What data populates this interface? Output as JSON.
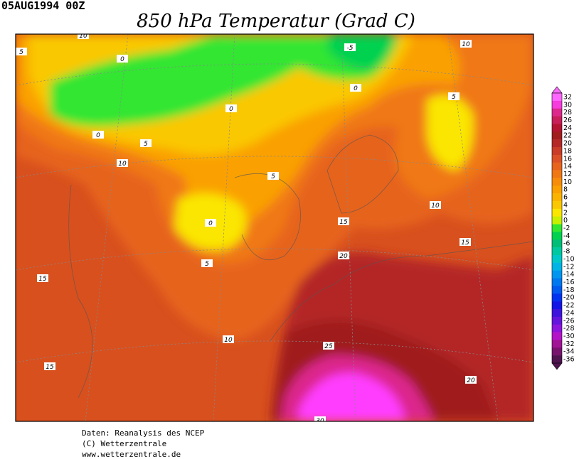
{
  "header": {
    "timestamp": "05AUG1994 00Z",
    "title": "850 hPa Temperatur (Grad C)"
  },
  "colorbar": {
    "ticks": [
      32,
      30,
      28,
      26,
      24,
      22,
      20,
      18,
      16,
      14,
      12,
      10,
      8,
      6,
      4,
      2,
      0,
      -2,
      -4,
      -6,
      -8,
      -10,
      -12,
      -14,
      -16,
      -18,
      -20,
      -22,
      -24,
      -26,
      -28,
      -30,
      -32,
      -34,
      -36
    ],
    "colors": [
      "#ff66ff",
      "#f53cdc",
      "#dc288c",
      "#c81e5a",
      "#b41432",
      "#a01e1e",
      "#b42828",
      "#c83c28",
      "#dc5028",
      "#e6641e",
      "#f07814",
      "#f58c0a",
      "#faa000",
      "#fab400",
      "#fac800",
      "#fae600",
      "#c8f000",
      "#32e632",
      "#00d250",
      "#00be78",
      "#00c8a0",
      "#00c8c8",
      "#00b4e6",
      "#0096f0",
      "#0078f0",
      "#005af0",
      "#0032f0",
      "#1414e6",
      "#3c14dc",
      "#6414dc",
      "#8c14dc",
      "#b414c8",
      "#a01496",
      "#78146e",
      "#501450"
    ]
  },
  "contour_labels": [
    10,
    5,
    0,
    -5,
    10,
    0,
    5,
    0,
    0,
    5,
    10,
    5,
    10,
    15,
    0,
    15,
    20,
    5,
    15,
    10,
    25,
    15,
    20,
    30
  ],
  "footer": [
    "Daten: Reanalysis des NCEP",
    "(C) Wetterzentrale",
    "www.wetterzentrale.de"
  ]
}
